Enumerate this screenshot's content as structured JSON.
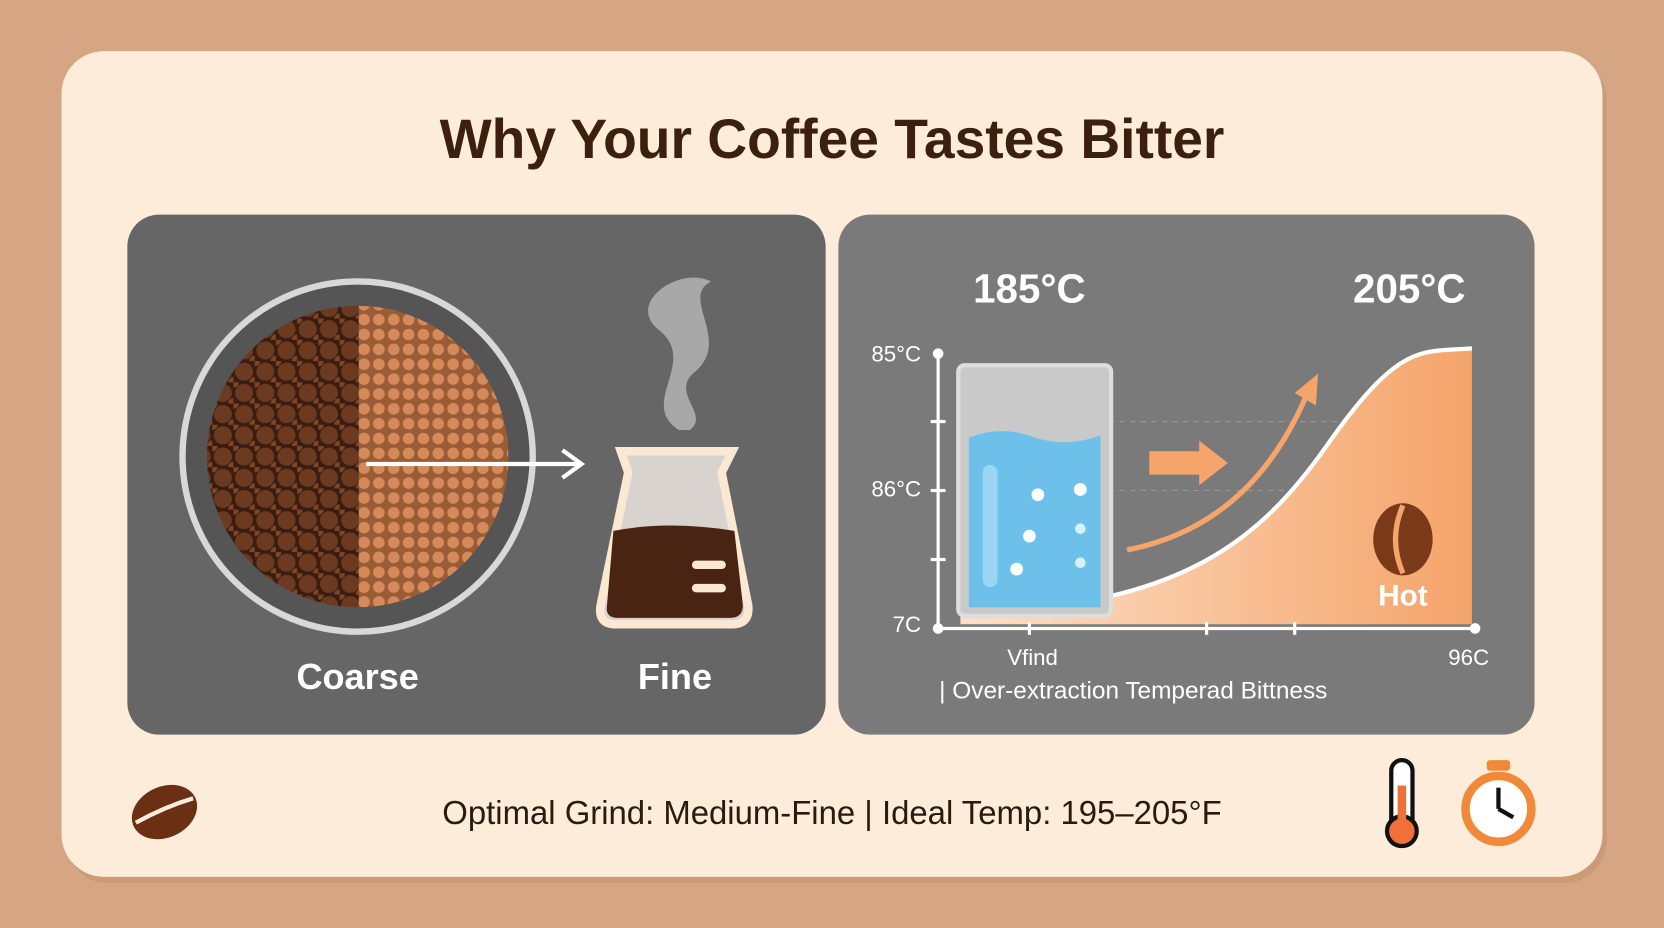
{
  "title": "Why Your Coffee Tastes Bitter",
  "grind_panel": {
    "labels": [
      "Coarse",
      "Fine"
    ]
  },
  "temperature_panel": {
    "top_labels": [
      "185°C",
      "205°C"
    ],
    "y_labels": [
      "85°C",
      "86°C",
      "7C"
    ],
    "x_labels": [
      "Vfind",
      "96C"
    ],
    "curve_label": "Hot",
    "caption": "| Over-extraction Temperad Bittness"
  },
  "footer": {
    "text": "Optimal Grind: Medium-Fine | Ideal Temp: 195–205°F"
  }
}
